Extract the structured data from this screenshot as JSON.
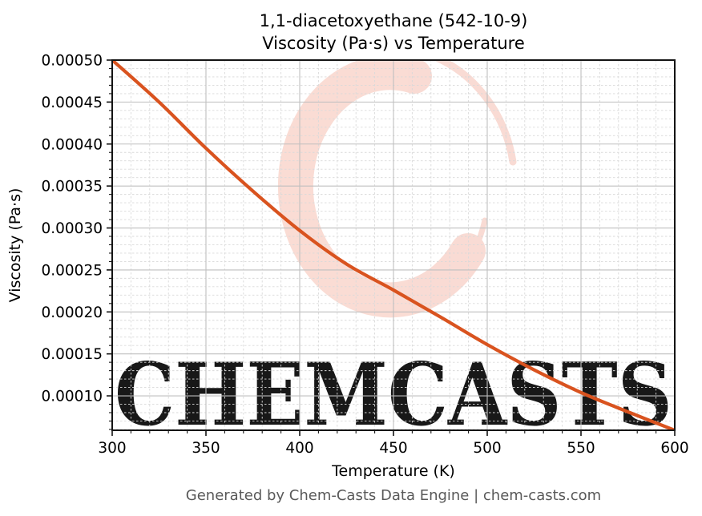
{
  "page": {
    "title_line1": "1,1-diacetoxyethane (542-10-9)",
    "title_line2": "Viscosity (Pa·s) vs Temperature",
    "footer": "Generated by Chem-Casts Data Engine | chem-casts.com",
    "watermark_text": "CHEMCASTS",
    "watermark_logo": "chemcasts-c-swirl-logo"
  },
  "colors": {
    "line": "#d9531f",
    "grid_major": "#bfbfbf",
    "grid_minor": "#d9d9d9",
    "spine": "#141414",
    "tick": "#141414",
    "watermark": "#f8d0c6",
    "footer_text": "#595959",
    "background": "#ffffff"
  },
  "chart_data": {
    "type": "line",
    "title": "1,1-diacetoxyethane (542-10-9) Viscosity (Pa·s) vs Temperature",
    "xlabel": "Temperature (K)",
    "ylabel": "Viscosity (Pa·s)",
    "xlim": [
      300,
      600
    ],
    "ylim": [
      5.9e-05,
      0.0005
    ],
    "grid": true,
    "legend": "none",
    "x_major_ticks": [
      300,
      350,
      400,
      450,
      500,
      550,
      600
    ],
    "x_tick_labels": [
      "300",
      "350",
      "400",
      "450",
      "500",
      "550",
      "600"
    ],
    "x_minor_step": 10,
    "y_major_ticks": [
      0.0001,
      0.00015,
      0.0002,
      0.00025,
      0.0003,
      0.00035,
      0.0004,
      0.00045,
      0.0005
    ],
    "y_tick_labels": [
      "0.00010",
      "0.00015",
      "0.00020",
      "0.00025",
      "0.00030",
      "0.00035",
      "0.00040",
      "0.00045",
      "0.00050"
    ],
    "y_minor_step": 1e-05,
    "series": [
      {
        "name": "viscosity-curve",
        "x": [
          300,
          325,
          350,
          375,
          400,
          425,
          450,
          475,
          500,
          525,
          550,
          575,
          600
        ],
        "y": [
          0.0005,
          0.00045,
          0.000395,
          0.000344,
          0.000297,
          0.000257,
          0.000226,
          0.000194,
          0.000161,
          0.000131,
          0.000104,
          8.1e-05,
          5.9e-05
        ]
      }
    ]
  }
}
